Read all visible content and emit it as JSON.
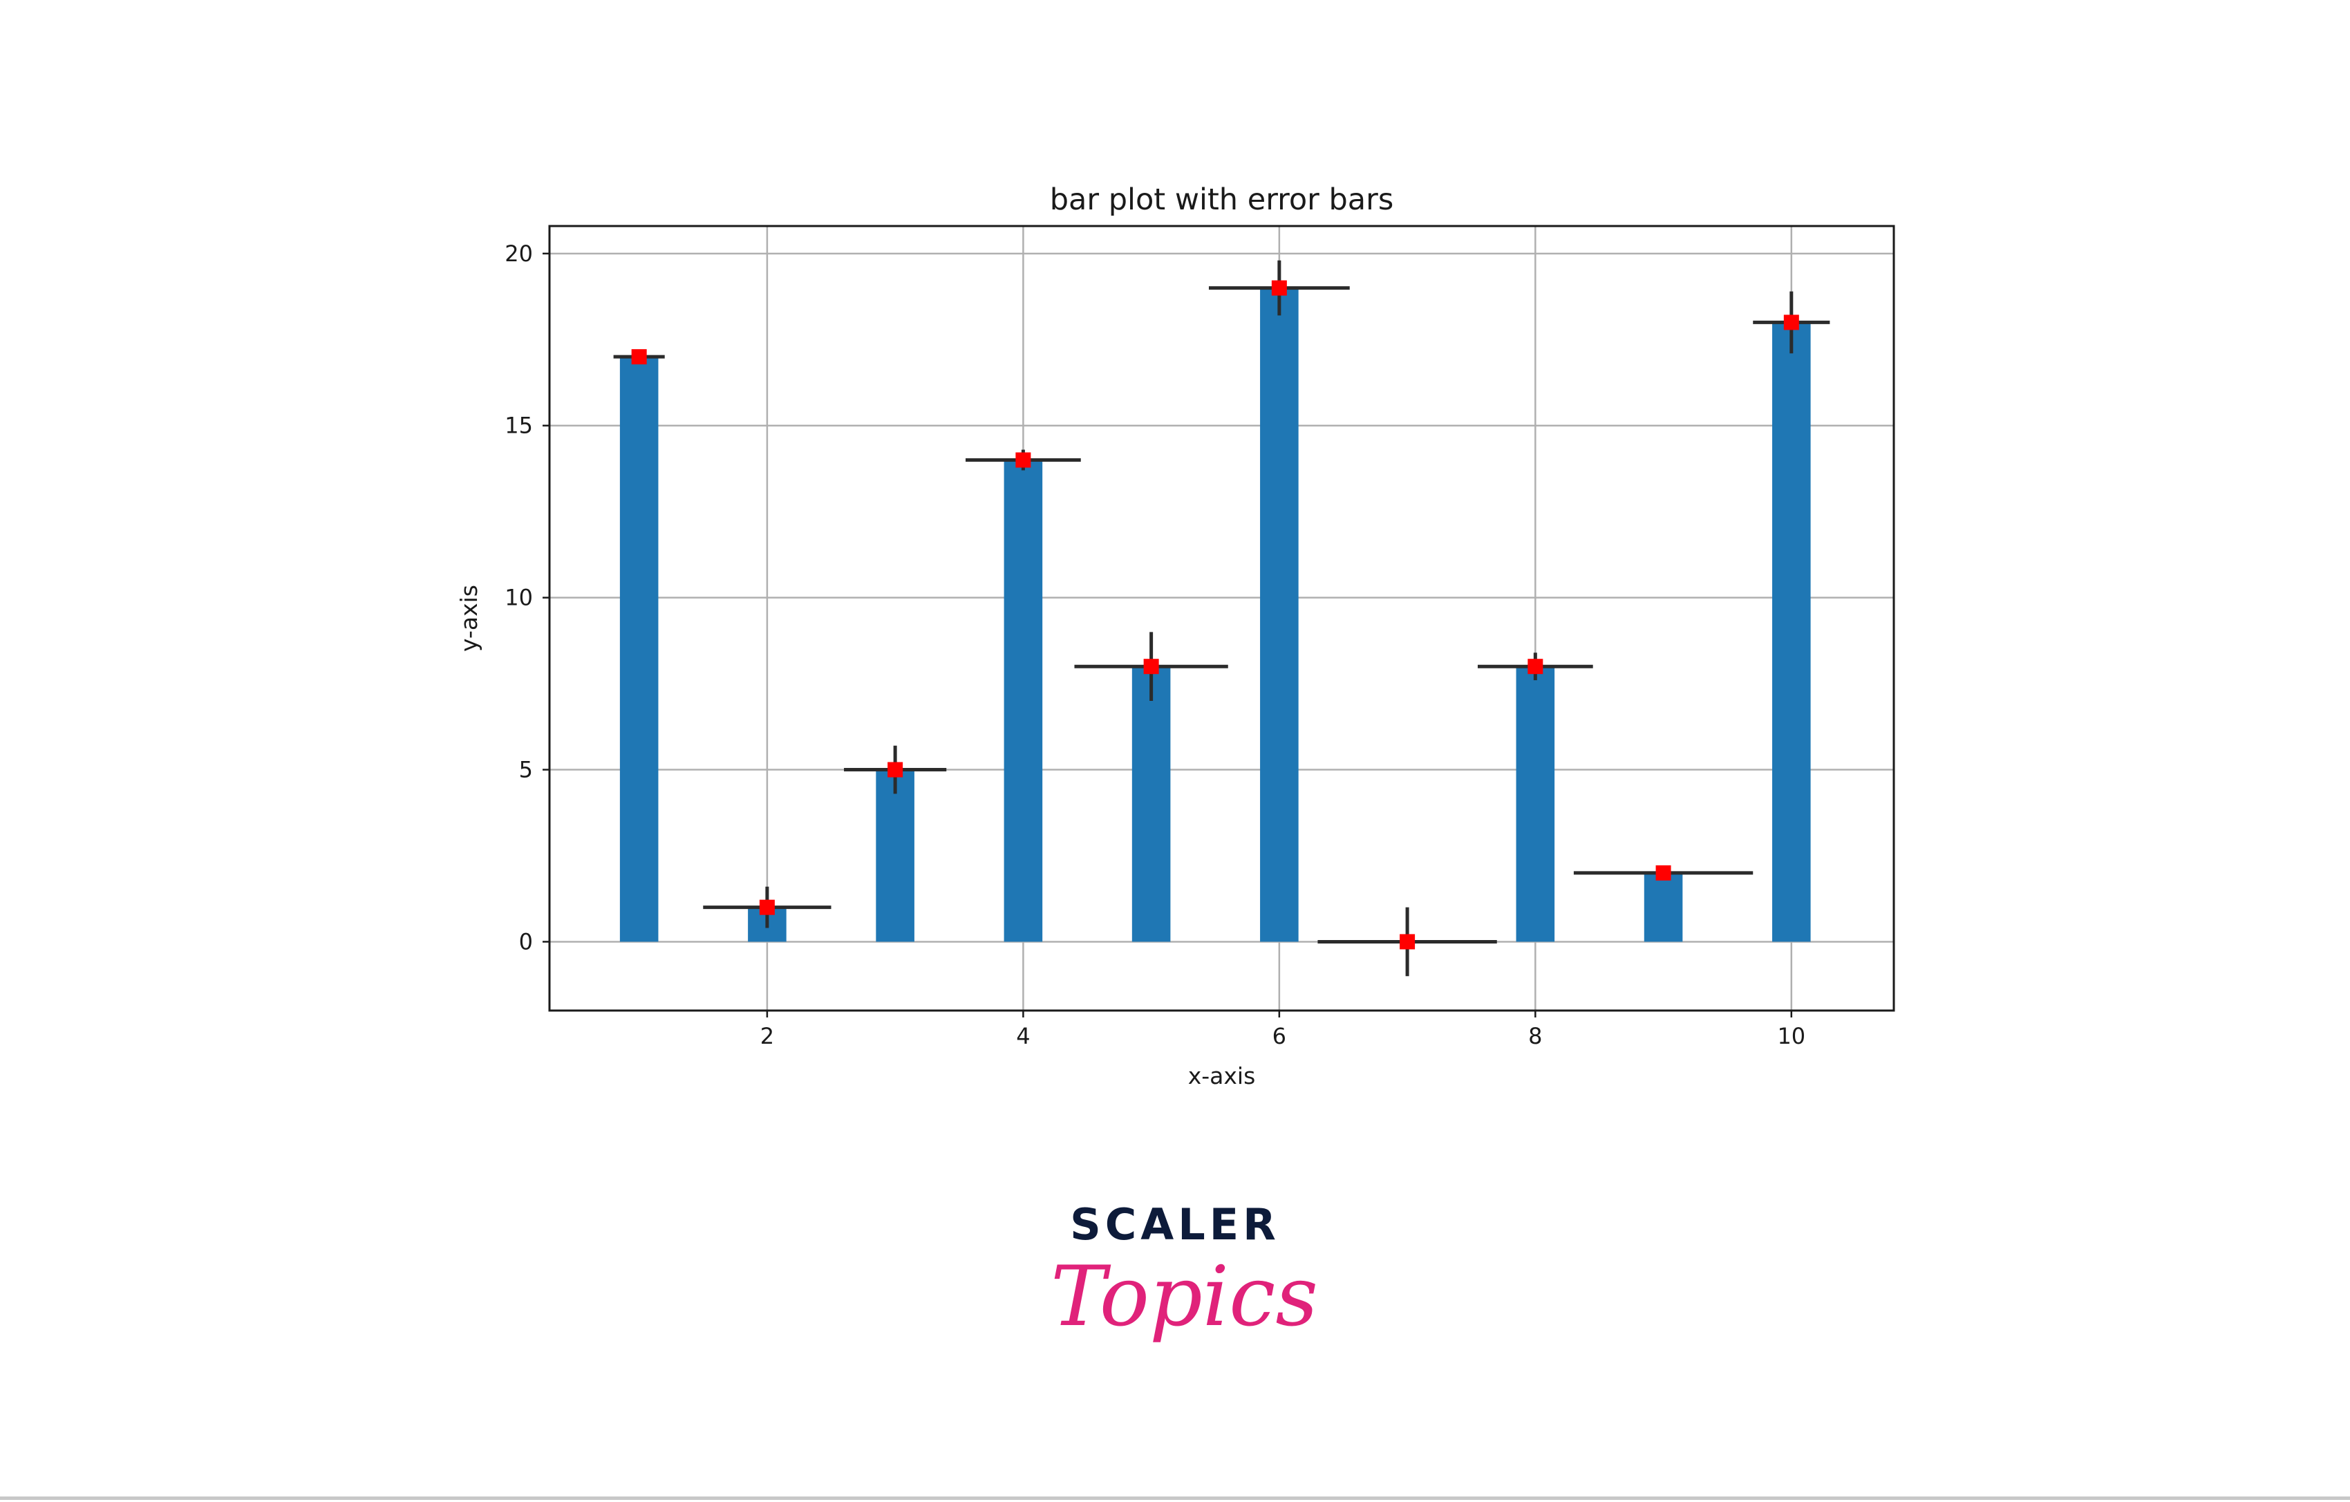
{
  "chart_data": {
    "type": "bar",
    "title": "bar plot with error bars",
    "xlabel": "x-axis",
    "ylabel": "y-axis",
    "x": [
      1,
      2,
      3,
      4,
      5,
      6,
      7,
      8,
      9,
      10
    ],
    "values": [
      17,
      1,
      5,
      14,
      8,
      19,
      0,
      8,
      2,
      18
    ],
    "yerr": [
      0.0,
      0.6,
      0.7,
      0.3,
      1.0,
      0.8,
      1.0,
      0.4,
      0.1,
      0.9
    ],
    "xerr": [
      0.2,
      0.5,
      0.4,
      0.45,
      0.6,
      0.55,
      0.7,
      0.45,
      0.7,
      0.3
    ],
    "xlim": [
      0.3,
      10.8
    ],
    "ylim": [
      -2,
      20.8
    ],
    "xticks": [
      2,
      4,
      6,
      8,
      10
    ],
    "yticks": [
      0,
      5,
      10,
      15,
      20
    ],
    "grid": true,
    "colors": {
      "bar": "#1f77b4",
      "marker": "#ff0000",
      "errorbar": "#2b2b2b",
      "grid": "#b0b0b0"
    }
  },
  "branding": {
    "line1": "SCALER",
    "line2": "Topics"
  }
}
